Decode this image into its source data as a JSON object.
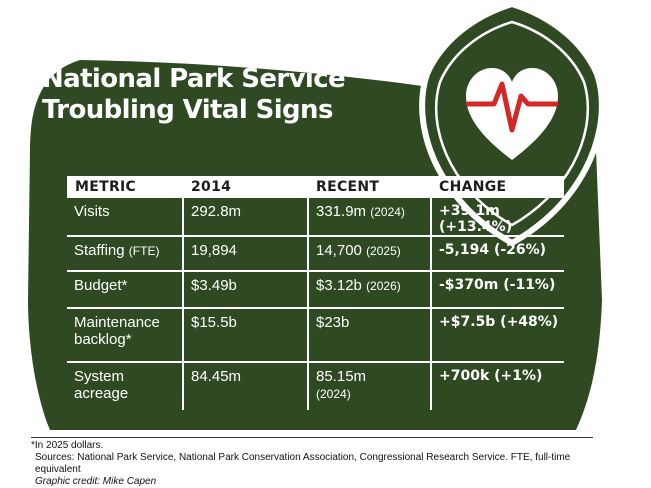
{
  "colors": {
    "green": "#2f4a22",
    "white": "#ffffff",
    "heart_red": "#d42827"
  },
  "icons": {
    "logo": "heart-pulse-badge-icon"
  },
  "title_lines": [
    "National Park Service",
    "Troubling Vital Signs"
  ],
  "columns": [
    "METRIC",
    "2014",
    "RECENT",
    "CHANGE"
  ],
  "rows": [
    {
      "metric": "Visits",
      "metric_note": "",
      "y2014": "292.8m",
      "recent": "331.9m",
      "recent_note": "(2024)",
      "change": "+39.1m (+13.4%)"
    },
    {
      "metric": "Staffing",
      "metric_note": "(FTE)",
      "y2014": "19,894",
      "recent": "14,700",
      "recent_note": "(2025)",
      "change": "-5,194 (-26%)"
    },
    {
      "metric": "Budget*",
      "metric_note": "",
      "y2014": "$3.49b",
      "recent": "$3.12b",
      "recent_note": "(2026)",
      "change": "-$370m (-11%)"
    },
    {
      "metric": "Maintenance backlog*",
      "metric_note": "",
      "y2014": "$15.5b",
      "recent": "$23b",
      "recent_note": "",
      "change": "+$7.5b (+48%)"
    },
    {
      "metric": "System acreage",
      "metric_note": "",
      "y2014": "84.45m",
      "recent": "85.15m",
      "recent_note": "(2024)",
      "change": "+700k (+1%)"
    }
  ],
  "footnote": "*In 2025 dollars.",
  "sources": "Sources: National Park Service, National Park Conservation Association, Congressional Research Service. FTE, full-time equivalent",
  "credit": "Graphic credit: Mike Capen"
}
